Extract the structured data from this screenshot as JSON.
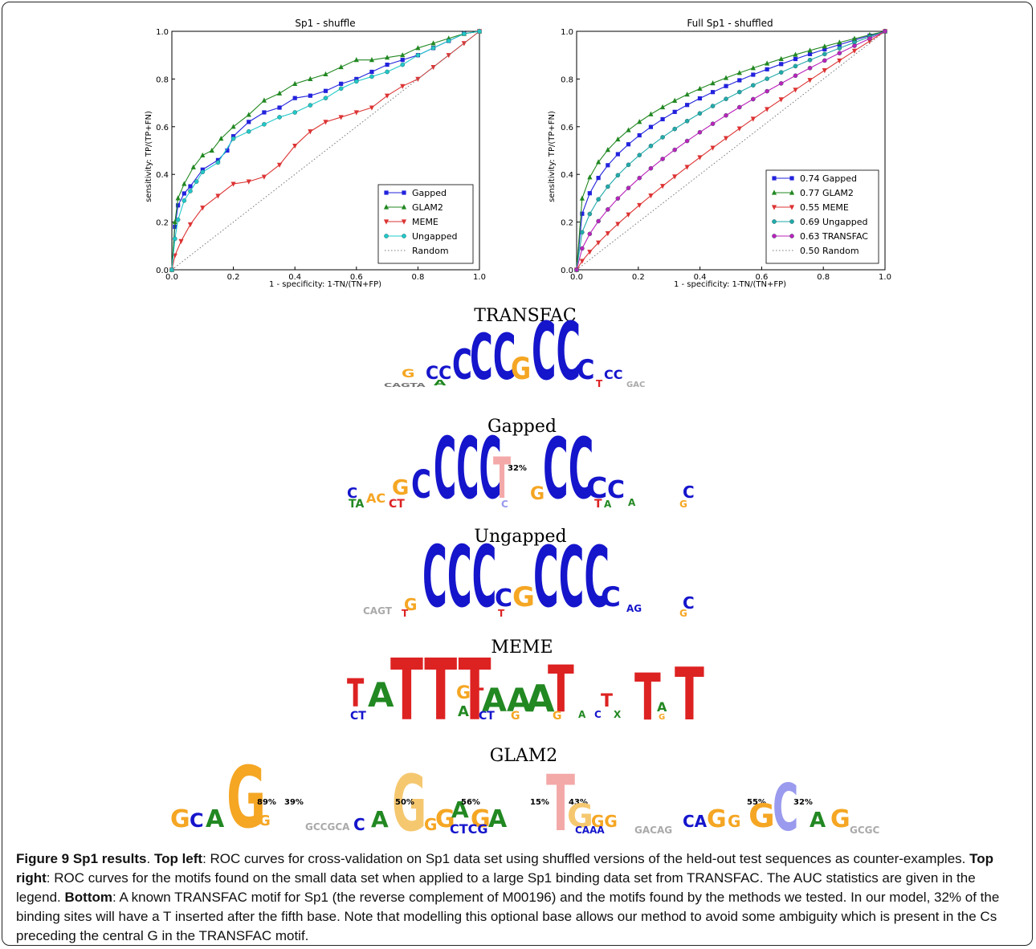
{
  "chart_data": [
    {
      "type": "line",
      "title": "Sp1 - shuffle",
      "xlabel": "1 - specificity: 1-TN/(TN+FP)",
      "ylabel": "sensitivity: TP/(TP+FN)",
      "xlim": [
        0,
        1
      ],
      "ylim": [
        0,
        1
      ],
      "xticks": [
        "0.0",
        "0.2",
        "0.4",
        "0.6",
        "0.8",
        "1.0"
      ],
      "yticks": [
        "0.0",
        "0.2",
        "0.4",
        "0.6",
        "0.8",
        "1.0"
      ],
      "legend_position": "lower right",
      "series": [
        {
          "name": "Gapped",
          "color": "#2222dd",
          "marker": "square",
          "x": [
            0,
            0.01,
            0.02,
            0.04,
            0.06,
            0.1,
            0.15,
            0.18,
            0.2,
            0.25,
            0.3,
            0.35,
            0.4,
            0.45,
            0.5,
            0.55,
            0.6,
            0.65,
            0.7,
            0.75,
            0.8,
            0.85,
            0.9,
            0.95,
            1.0
          ],
          "y": [
            0,
            0.18,
            0.27,
            0.32,
            0.35,
            0.42,
            0.46,
            0.5,
            0.56,
            0.62,
            0.66,
            0.68,
            0.72,
            0.73,
            0.75,
            0.78,
            0.8,
            0.83,
            0.86,
            0.88,
            0.9,
            0.93,
            0.96,
            0.99,
            1.0
          ]
        },
        {
          "name": "GLAM2",
          "color": "#228822",
          "marker": "triangle-up",
          "x": [
            0,
            0.01,
            0.02,
            0.04,
            0.07,
            0.1,
            0.13,
            0.16,
            0.2,
            0.25,
            0.3,
            0.35,
            0.4,
            0.45,
            0.5,
            0.55,
            0.6,
            0.65,
            0.7,
            0.75,
            0.8,
            0.85,
            0.9,
            0.95,
            1.0
          ],
          "y": [
            0,
            0.2,
            0.3,
            0.36,
            0.43,
            0.48,
            0.5,
            0.55,
            0.6,
            0.65,
            0.71,
            0.74,
            0.78,
            0.8,
            0.82,
            0.85,
            0.88,
            0.88,
            0.89,
            0.9,
            0.93,
            0.95,
            0.97,
            0.99,
            1.0
          ]
        },
        {
          "name": "MEME",
          "color": "#dd3333",
          "marker": "triangle-down",
          "x": [
            0,
            0.01,
            0.03,
            0.06,
            0.1,
            0.15,
            0.2,
            0.25,
            0.3,
            0.35,
            0.4,
            0.45,
            0.5,
            0.55,
            0.6,
            0.65,
            0.7,
            0.75,
            0.8,
            0.85,
            0.9,
            0.95,
            1.0
          ],
          "y": [
            0,
            0.06,
            0.12,
            0.19,
            0.26,
            0.31,
            0.36,
            0.37,
            0.39,
            0.44,
            0.52,
            0.58,
            0.62,
            0.64,
            0.66,
            0.68,
            0.73,
            0.77,
            0.8,
            0.85,
            0.9,
            0.95,
            1.0
          ]
        },
        {
          "name": "Ungapped",
          "color": "#22c8c8",
          "marker": "circle",
          "x": [
            0,
            0.01,
            0.02,
            0.04,
            0.06,
            0.08,
            0.1,
            0.15,
            0.2,
            0.25,
            0.3,
            0.35,
            0.4,
            0.45,
            0.5,
            0.55,
            0.6,
            0.65,
            0.7,
            0.75,
            0.8,
            0.85,
            0.9,
            0.95,
            1.0
          ],
          "y": [
            0,
            0.13,
            0.21,
            0.29,
            0.33,
            0.37,
            0.41,
            0.45,
            0.55,
            0.58,
            0.61,
            0.64,
            0.66,
            0.69,
            0.72,
            0.76,
            0.79,
            0.81,
            0.83,
            0.86,
            0.9,
            0.93,
            0.96,
            0.99,
            1.0
          ]
        },
        {
          "name": "Random",
          "color": "#777777",
          "marker": "none",
          "dotted": true,
          "x": [
            0,
            1
          ],
          "y": [
            0,
            1
          ]
        }
      ]
    },
    {
      "type": "line",
      "title": "Full Sp1 - shuffled",
      "xlabel": "1 - specificity: 1-TN/(TN+FP)",
      "ylabel": "sensitivity: TP/(TP+FN)",
      "xlim": [
        0,
        1
      ],
      "ylim": [
        0,
        1
      ],
      "xticks": [
        "0.0",
        "0.2",
        "0.4",
        "0.6",
        "0.8",
        "1.0"
      ],
      "yticks": [
        "0.0",
        "0.2",
        "0.4",
        "0.6",
        "0.8",
        "1.0"
      ],
      "legend_position": "lower right",
      "series": [
        {
          "name": "0.74 Gapped",
          "color": "#2222dd",
          "marker": "square",
          "pw": 0.36
        },
        {
          "name": "0.77 GLAM2",
          "color": "#228822",
          "marker": "triangle-up",
          "pw": 0.3
        },
        {
          "name": "0.55 MEME",
          "color": "#dd3333",
          "marker": "triangle-down",
          "pw": 0.82
        },
        {
          "name": "0.69 Ungapped",
          "color": "#22aaaa",
          "marker": "circle",
          "pw": 0.46
        },
        {
          "name": "0.63 TRANSFAC",
          "color": "#bb22bb",
          "marker": "circle",
          "pw": 0.6
        },
        {
          "name": "0.50 Random",
          "color": "#777777",
          "marker": "none",
          "dotted": true,
          "pw": 1.0
        }
      ]
    }
  ],
  "motifs": [
    {
      "title": "TRANSFAC"
    },
    {
      "title": "Gapped",
      "annotations": [
        "32%"
      ]
    },
    {
      "title": "Ungapped"
    },
    {
      "title": "MEME"
    },
    {
      "title": "GLAM2",
      "annotations": [
        "89%",
        "39%",
        "50%",
        "56%",
        "15%",
        "43%",
        "55%",
        "32%"
      ]
    }
  ],
  "caption": {
    "figure_label": "Figure 9 Sp1 results",
    "sep1": ". ",
    "top_left_label": "Top left",
    "top_left_text": ": ROC curves for cross-validation on Sp1 data set using shuffled versions of the held-out test sequences as counter-examples. ",
    "top_right_label": "Top right",
    "top_right_text": ": ROC curves for the motifs found on the small data set when applied to a large Sp1 binding data set from TRANSFAC. The AUC statistics are given in the legend. ",
    "bottom_label": "Bottom",
    "bottom_text": ": A known TRANSFAC motif for Sp1 (the reverse complement of M00196) and the motifs found by the methods we tested. In our model, 32% of the binding sites will have a T inserted after the fifth base. Note that modelling this optional base allows our method to avoid some ambiguity which is present in the Cs preceding the central G in the TRANSFAC motif."
  }
}
